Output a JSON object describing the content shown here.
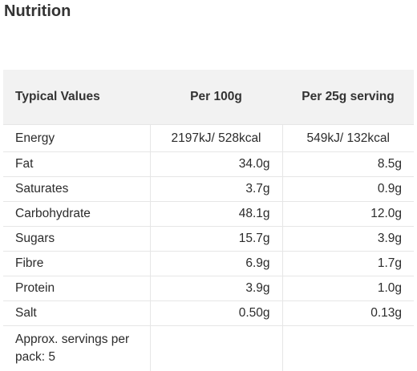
{
  "title": "Nutrition",
  "table": {
    "headers": [
      "Typical Values",
      "Per 100g",
      "Per 25g serving"
    ],
    "rows": [
      {
        "label": "Energy",
        "per100": "2197kJ/ 528kcal",
        "perServing": "549kJ/ 132kcal"
      },
      {
        "label": "Fat",
        "per100": "34.0g",
        "perServing": "8.5g"
      },
      {
        "label": "Saturates",
        "per100": "3.7g",
        "perServing": "0.9g"
      },
      {
        "label": "Carbohydrate",
        "per100": "48.1g",
        "perServing": "12.0g"
      },
      {
        "label": "Sugars",
        "per100": "15.7g",
        "perServing": "3.9g"
      },
      {
        "label": "Fibre",
        "per100": "6.9g",
        "perServing": "1.7g"
      },
      {
        "label": "Protein",
        "per100": "3.9g",
        "perServing": "1.0g"
      },
      {
        "label": "Salt",
        "per100": "0.50g",
        "perServing": "0.13g"
      }
    ],
    "footer": "Approx. servings per pack: 5"
  }
}
